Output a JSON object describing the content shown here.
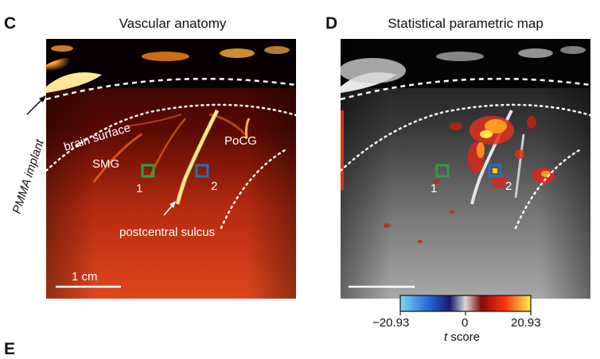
{
  "panels": {
    "c": {
      "letter": "C",
      "title": "Vascular anatomy",
      "labels": {
        "pmma": "PMMA implant",
        "brain_surface": "brain surface",
        "smg": "SMG",
        "pocg": "PoCG",
        "roi1": "1",
        "roi2": "2",
        "sulcus": "postcentral sulcus",
        "scale": "1 cm"
      }
    },
    "d": {
      "letter": "D",
      "title": "Statistical parametric map",
      "labels": {
        "roi1": "1",
        "roi2": "2"
      },
      "colorbar": {
        "min": "−20.93",
        "mid": "0",
        "max": "20.93",
        "label_italic": "t",
        "label_rest": " score"
      }
    },
    "e": {
      "letter": "E"
    }
  },
  "colors": {
    "roi1": "#2e9e44",
    "roi2": "#2d6db5",
    "hot_dark": "#1a0000",
    "hot_bright": "#ffd24a"
  }
}
